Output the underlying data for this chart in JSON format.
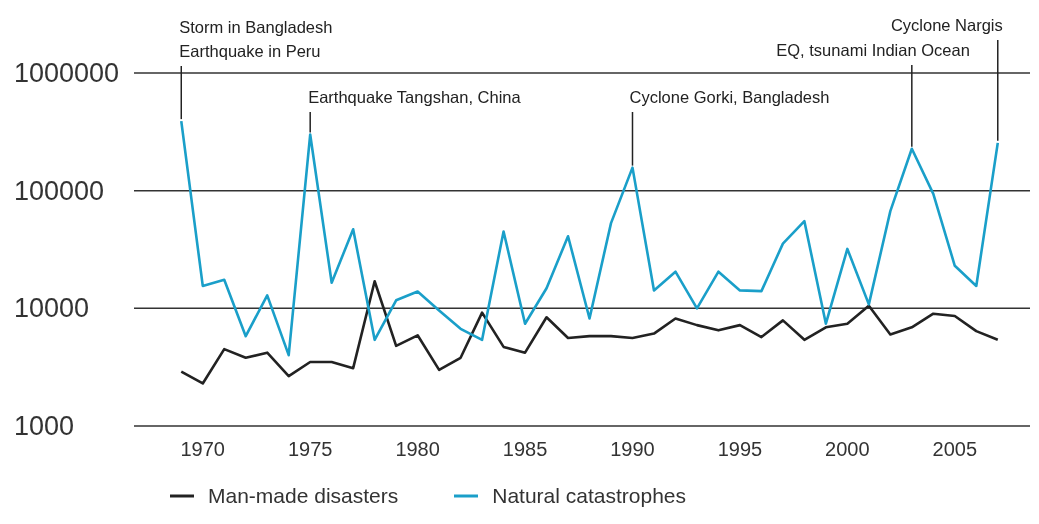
{
  "chart_data": {
    "type": "line",
    "log": "y",
    "grid": "y",
    "legend": "bottom",
    "line_style": "solid",
    "marker": "none",
    "x": [
      1969,
      1970,
      1971,
      1972,
      1973,
      1974,
      1975,
      1976,
      1977,
      1978,
      1979,
      1980,
      1981,
      1982,
      1983,
      1984,
      1985,
      1986,
      1987,
      1988,
      1989,
      1990,
      1991,
      1992,
      1993,
      1994,
      1995,
      1996,
      1997,
      1998,
      1999,
      2000,
      2001,
      2002,
      2003,
      2004,
      2005,
      2006,
      2007
    ],
    "series": [
      {
        "name": "Man-made disasters",
        "color": "#222222",
        "values": [
          2900,
          2300,
          4500,
          3800,
          4200,
          2650,
          3500,
          3500,
          3100,
          17000,
          4800,
          5900,
          3000,
          3800,
          9200,
          4700,
          4200,
          8400,
          5600,
          5800,
          5800,
          5600,
          6100,
          8200,
          7200,
          6500,
          7200,
          5700,
          7900,
          5400,
          6900,
          7400,
          10500,
          6000,
          6900,
          9000,
          8600,
          6400,
          5400
        ]
      },
      {
        "name": "Natural catastrophes",
        "color": "#1a9fc9",
        "values": [
          390000,
          15500,
          17500,
          5800,
          12900,
          4000,
          300000,
          16500,
          47000,
          5400,
          11700,
          13900,
          9600,
          6700,
          5400,
          45000,
          7400,
          14800,
          41000,
          8200,
          53000,
          157000,
          14200,
          20500,
          10000,
          20500,
          14200,
          14000,
          35500,
          55000,
          7400,
          32000,
          10800,
          67000,
          227000,
          94000,
          23000,
          15500,
          255000
        ]
      }
    ],
    "xlim": [
      1966.8,
      2008.5
    ],
    "xticks": [
      1970,
      1975,
      1980,
      1985,
      1990,
      1995,
      2000,
      2005
    ],
    "ylim": [
      1000,
      1000000
    ],
    "yticks": [
      1000,
      10000,
      100000,
      1000000
    ],
    "annotations": [
      {
        "text": "Storm in Bangladesh\nEarthquake in Peru",
        "x": 1969,
        "y": 390000
      },
      {
        "text": "Earthquake Tangshan, China",
        "x": 1975,
        "y": 300000
      },
      {
        "text": "Cyclone Gorki, Bangladesh",
        "x": 1990,
        "y": 157000
      },
      {
        "text": "EQ, tsunami Indian Ocean",
        "x": 2003,
        "y": 227000
      },
      {
        "text": "Cyclone Nargis",
        "x": 2007,
        "y": 255000
      }
    ]
  }
}
